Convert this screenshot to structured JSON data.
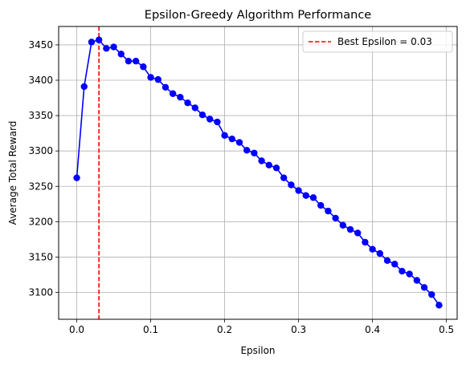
{
  "chart_data": {
    "type": "line",
    "title": "Epsilon-Greedy Algorithm Performance",
    "xlabel": "Epsilon",
    "ylabel": "Average Total Reward",
    "xlim": [
      -0.0245,
      0.5145
    ],
    "ylim": [
      3062,
      3476
    ],
    "x_ticks": [
      0.0,
      0.1,
      0.2,
      0.3,
      0.4,
      0.5
    ],
    "x_tick_labels": [
      "0.0",
      "0.1",
      "0.2",
      "0.3",
      "0.4",
      "0.5"
    ],
    "y_ticks": [
      3100,
      3150,
      3200,
      3250,
      3300,
      3350,
      3400,
      3450
    ],
    "y_tick_labels": [
      "3100",
      "3150",
      "3200",
      "3250",
      "3300",
      "3350",
      "3400",
      "3450"
    ],
    "grid": true,
    "series": [
      {
        "color": "#0000ff",
        "marker": "circle",
        "x": [
          0.0,
          0.01,
          0.02,
          0.03,
          0.04,
          0.05,
          0.06,
          0.07,
          0.08,
          0.09,
          0.1,
          0.11,
          0.12,
          0.13,
          0.14,
          0.15,
          0.16,
          0.17,
          0.18,
          0.19,
          0.2,
          0.21,
          0.22,
          0.23,
          0.24,
          0.25,
          0.26,
          0.27,
          0.28,
          0.29,
          0.3,
          0.31,
          0.32,
          0.33,
          0.34,
          0.35,
          0.36,
          0.37,
          0.38,
          0.39,
          0.4,
          0.41,
          0.42,
          0.43,
          0.44,
          0.45,
          0.46,
          0.47,
          0.48,
          0.49
        ],
        "values": [
          3262,
          3391,
          3454,
          3457,
          3445,
          3447,
          3437,
          3427,
          3427,
          3419,
          3404,
          3401,
          3390,
          3381,
          3376,
          3368,
          3361,
          3351,
          3345,
          3341,
          3322,
          3317,
          3312,
          3301,
          3297,
          3286,
          3280,
          3276,
          3262,
          3252,
          3244,
          3237,
          3234,
          3223,
          3215,
          3205,
          3195,
          3189,
          3184,
          3171,
          3161,
          3155,
          3145,
          3140,
          3130,
          3126,
          3117,
          3107,
          3097,
          3082
        ]
      }
    ],
    "reference_lines": [
      {
        "orientation": "vertical",
        "x": 0.03,
        "color": "#ff0000",
        "style": "dashed",
        "label": "Best Epsilon = 0.03"
      }
    ],
    "legend": {
      "position": "top-right"
    }
  }
}
